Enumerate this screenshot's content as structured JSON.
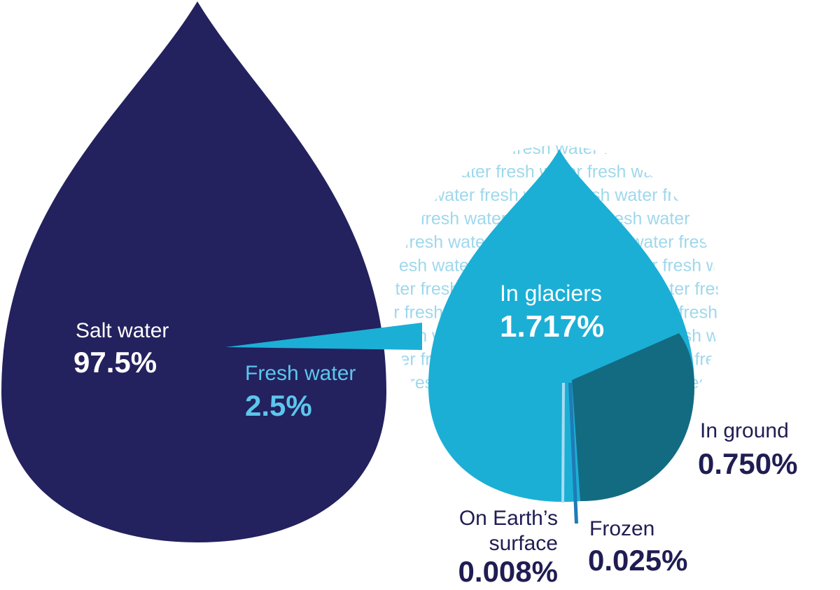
{
  "chart_data": {
    "type": "pie",
    "title": "",
    "background_text": "fresh water",
    "colors": {
      "salt_drop": "#23215e",
      "fresh_drop": "#1bafd6",
      "ground_slice": "#136b82",
      "frozen_slice": "#1f7bb6",
      "surface_slice": "#a9dcef",
      "bg_text": "#9fd8ec",
      "dark_label": "#1f1d52",
      "white_label": "#ffffff",
      "light_blue_label": "#5cc6ec"
    },
    "overall": {
      "slices": [
        {
          "label": "Salt water",
          "value_label": "97.5%",
          "value": 97.5
        },
        {
          "label": "Fresh water",
          "value_label": "2.5%",
          "value": 2.5
        }
      ]
    },
    "fresh_water_breakdown": {
      "slices": [
        {
          "label": "In glaciers",
          "value_label": "1.717%",
          "value": 1.717
        },
        {
          "label": "In ground",
          "value_label": "0.750%",
          "value": 0.75
        },
        {
          "label": "Frozen",
          "value_label": "0.025%",
          "value": 0.025
        },
        {
          "label": "On Earth’s",
          "label_line2": "surface",
          "value_label": "0.008%",
          "value": 0.008
        }
      ]
    }
  }
}
